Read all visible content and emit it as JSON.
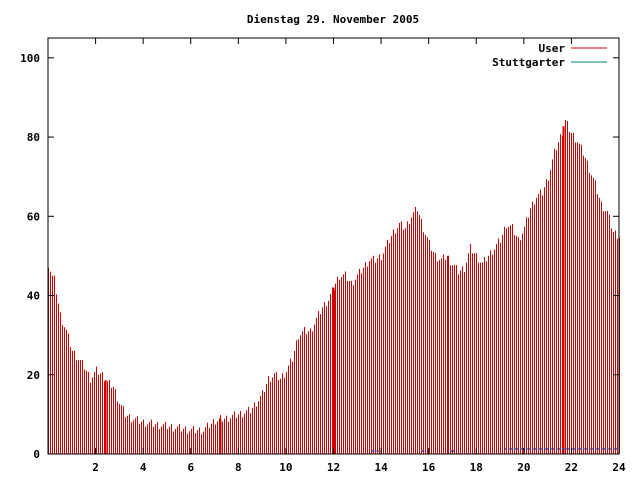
{
  "chart_data": {
    "type": "bar",
    "title": "Dienstag 29. November 2005",
    "xlabel": "",
    "ylabel": "",
    "xlim": [
      0,
      24
    ],
    "ylim": [
      0,
      105
    ],
    "x_ticks": [
      {
        "v": 2,
        "label": "2"
      },
      {
        "v": 4,
        "label": "4"
      },
      {
        "v": 6,
        "label": "6"
      },
      {
        "v": 8,
        "label": "8"
      },
      {
        "v": 10,
        "label": "10"
      },
      {
        "v": 12,
        "label": "12"
      },
      {
        "v": 14,
        "label": "14"
      },
      {
        "v": 16,
        "label": "16"
      },
      {
        "v": 18,
        "label": "18"
      },
      {
        "v": 20,
        "label": "20"
      },
      {
        "v": 22,
        "label": "22"
      },
      {
        "v": 24,
        "label": "24"
      }
    ],
    "y_ticks": [
      {
        "v": 0,
        "label": "0"
      },
      {
        "v": 20,
        "label": "20"
      },
      {
        "v": 40,
        "label": "40"
      },
      {
        "v": 60,
        "label": "60"
      },
      {
        "v": 80,
        "label": "80"
      },
      {
        "v": 100,
        "label": "100"
      }
    ],
    "grid": false,
    "legend_position": "top-right",
    "interval_minutes": 5,
    "series": [
      {
        "name": "User",
        "color": "#cc0000",
        "anchors": [
          [
            0.0,
            47
          ],
          [
            0.25,
            44
          ],
          [
            0.5,
            35
          ],
          [
            0.75,
            31
          ],
          [
            1.0,
            26
          ],
          [
            1.25,
            24
          ],
          [
            1.5,
            22
          ],
          [
            1.75,
            19
          ],
          [
            2.0,
            21
          ],
          [
            2.25,
            20
          ],
          [
            2.5,
            18
          ],
          [
            2.75,
            17
          ],
          [
            3.0,
            13
          ],
          [
            3.25,
            10
          ],
          [
            3.5,
            9
          ],
          [
            3.75,
            8.5
          ],
          [
            4.0,
            8
          ],
          [
            4.5,
            7.5
          ],
          [
            5.0,
            7
          ],
          [
            5.5,
            6.5
          ],
          [
            6.0,
            6
          ],
          [
            6.5,
            6
          ],
          [
            7.0,
            8.5
          ],
          [
            7.5,
            9
          ],
          [
            8.0,
            10
          ],
          [
            8.5,
            11
          ],
          [
            9.0,
            15
          ],
          [
            9.25,
            19
          ],
          [
            9.5,
            20
          ],
          [
            9.75,
            19
          ],
          [
            10.0,
            21
          ],
          [
            10.25,
            24
          ],
          [
            10.5,
            30
          ],
          [
            10.75,
            31
          ],
          [
            11.0,
            31
          ],
          [
            11.25,
            34
          ],
          [
            11.5,
            37
          ],
          [
            11.75,
            39
          ],
          [
            12.0,
            42
          ],
          [
            12.25,
            45
          ],
          [
            12.5,
            45
          ],
          [
            12.75,
            43
          ],
          [
            13.0,
            45
          ],
          [
            13.25,
            47
          ],
          [
            13.5,
            49
          ],
          [
            13.75,
            49
          ],
          [
            14.0,
            50
          ],
          [
            14.25,
            53
          ],
          [
            14.5,
            56
          ],
          [
            14.75,
            58
          ],
          [
            15.0,
            57
          ],
          [
            15.25,
            60
          ],
          [
            15.5,
            62
          ],
          [
            15.75,
            57
          ],
          [
            16.0,
            53
          ],
          [
            16.25,
            50
          ],
          [
            16.5,
            49
          ],
          [
            16.75,
            50
          ],
          [
            17.0,
            48
          ],
          [
            17.25,
            46
          ],
          [
            17.5,
            47
          ],
          [
            17.75,
            52
          ],
          [
            18.0,
            50
          ],
          [
            18.25,
            48
          ],
          [
            18.5,
            50
          ],
          [
            18.75,
            52
          ],
          [
            19.0,
            54
          ],
          [
            19.25,
            58
          ],
          [
            19.5,
            57
          ],
          [
            19.75,
            54
          ],
          [
            20.0,
            57
          ],
          [
            20.25,
            62
          ],
          [
            20.5,
            65
          ],
          [
            20.75,
            66
          ],
          [
            21.0,
            70
          ],
          [
            21.25,
            76
          ],
          [
            21.5,
            80
          ],
          [
            21.75,
            84
          ],
          [
            22.0,
            81
          ],
          [
            22.25,
            79
          ],
          [
            22.5,
            76
          ],
          [
            22.75,
            72
          ],
          [
            23.0,
            68
          ],
          [
            23.25,
            63
          ],
          [
            23.5,
            61
          ],
          [
            23.75,
            56
          ],
          [
            24.0,
            55
          ]
        ],
        "highlight_x": [
          2.42,
          7.25,
          12.0,
          21.67
        ]
      },
      {
        "name": "Stuttgarter",
        "color": "#008080",
        "segments": [
          [
            13.6,
            13.9,
            0.5
          ],
          [
            15.7,
            15.9,
            0.5
          ],
          [
            16.9,
            17.1,
            0.5
          ],
          [
            19.2,
            24.0,
            1.0
          ]
        ]
      }
    ]
  }
}
